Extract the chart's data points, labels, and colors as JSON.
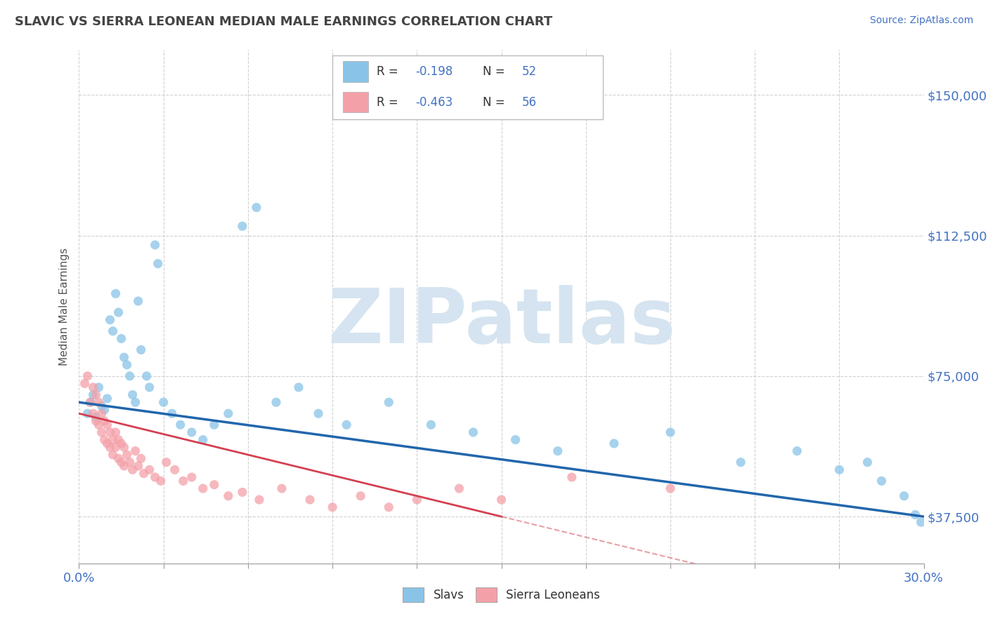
{
  "title": "SLAVIC VS SIERRA LEONEAN MEDIAN MALE EARNINGS CORRELATION CHART",
  "source_text": "Source: ZipAtlas.com",
  "ylabel": "Median Male Earnings",
  "xlim": [
    0.0,
    0.3
  ],
  "ylim": [
    25000,
    162000
  ],
  "xtick_positions": [
    0.0,
    0.03,
    0.06,
    0.09,
    0.12,
    0.15,
    0.18,
    0.21,
    0.24,
    0.27,
    0.3
  ],
  "ytick_positions": [
    37500,
    75000,
    112500,
    150000
  ],
  "ytick_labels": [
    "$37,500",
    "$75,000",
    "$112,500",
    "$150,000"
  ],
  "slavs_color": "#89c4e8",
  "sierra_color": "#f4a0a8",
  "slavs_trend_color": "#2166ac",
  "sierra_trend_color": "#d44050",
  "grid_color": "#cccccc",
  "background_color": "#ffffff",
  "title_color": "#444444",
  "axis_label_color": "#555555",
  "tick_color": "#4472c4",
  "watermark_color": "#d5e4f0",
  "watermark_text": "ZIPatlas",
  "bottom_legend_slavs": "Slavs",
  "bottom_legend_sierra": "Sierra Leoneans",
  "slavs_x": [
    0.003,
    0.004,
    0.005,
    0.006,
    0.007,
    0.008,
    0.009,
    0.01,
    0.011,
    0.012,
    0.013,
    0.014,
    0.015,
    0.016,
    0.017,
    0.018,
    0.019,
    0.02,
    0.021,
    0.022,
    0.024,
    0.025,
    0.027,
    0.028,
    0.03,
    0.033,
    0.036,
    0.04,
    0.044,
    0.048,
    0.053,
    0.058,
    0.063,
    0.07,
    0.078,
    0.085,
    0.095,
    0.11,
    0.125,
    0.14,
    0.155,
    0.17,
    0.19,
    0.21,
    0.235,
    0.255,
    0.27,
    0.28,
    0.285,
    0.293,
    0.297,
    0.299
  ],
  "slavs_y": [
    65000,
    68000,
    70000,
    64000,
    72000,
    67000,
    66000,
    69000,
    90000,
    87000,
    97000,
    92000,
    85000,
    80000,
    78000,
    75000,
    70000,
    68000,
    95000,
    82000,
    75000,
    72000,
    110000,
    105000,
    68000,
    65000,
    62000,
    60000,
    58000,
    62000,
    65000,
    115000,
    120000,
    68000,
    72000,
    65000,
    62000,
    68000,
    62000,
    60000,
    58000,
    55000,
    57000,
    60000,
    52000,
    55000,
    50000,
    52000,
    47000,
    43000,
    38000,
    36000
  ],
  "sierra_x": [
    0.002,
    0.003,
    0.004,
    0.005,
    0.005,
    0.006,
    0.006,
    0.007,
    0.007,
    0.008,
    0.008,
    0.009,
    0.009,
    0.01,
    0.01,
    0.011,
    0.011,
    0.012,
    0.012,
    0.013,
    0.013,
    0.014,
    0.014,
    0.015,
    0.015,
    0.016,
    0.016,
    0.017,
    0.018,
    0.019,
    0.02,
    0.021,
    0.022,
    0.023,
    0.025,
    0.027,
    0.029,
    0.031,
    0.034,
    0.037,
    0.04,
    0.044,
    0.048,
    0.053,
    0.058,
    0.064,
    0.072,
    0.082,
    0.09,
    0.1,
    0.11,
    0.12,
    0.135,
    0.15,
    0.175,
    0.21
  ],
  "sierra_y": [
    73000,
    75000,
    68000,
    72000,
    65000,
    70000,
    63000,
    68000,
    62000,
    65000,
    60000,
    63000,
    58000,
    62000,
    57000,
    60000,
    56000,
    58000,
    54000,
    60000,
    56000,
    58000,
    53000,
    57000,
    52000,
    56000,
    51000,
    54000,
    52000,
    50000,
    55000,
    51000,
    53000,
    49000,
    50000,
    48000,
    47000,
    52000,
    50000,
    47000,
    48000,
    45000,
    46000,
    43000,
    44000,
    42000,
    45000,
    42000,
    40000,
    43000,
    40000,
    42000,
    45000,
    42000,
    48000,
    45000
  ]
}
